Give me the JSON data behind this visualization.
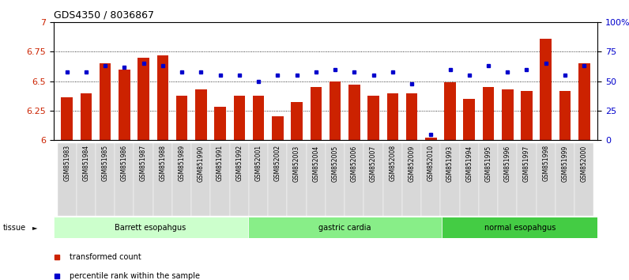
{
  "title": "GDS4350 / 8036867",
  "samples": [
    "GSM851983",
    "GSM851984",
    "GSM851985",
    "GSM851986",
    "GSM851987",
    "GSM851988",
    "GSM851989",
    "GSM851990",
    "GSM851991",
    "GSM851992",
    "GSM852001",
    "GSM852002",
    "GSM852003",
    "GSM852004",
    "GSM852005",
    "GSM852006",
    "GSM852007",
    "GSM852008",
    "GSM852009",
    "GSM852010",
    "GSM851993",
    "GSM851994",
    "GSM851995",
    "GSM851996",
    "GSM851997",
    "GSM851998",
    "GSM851999",
    "GSM852000"
  ],
  "red_values": [
    6.36,
    6.4,
    6.65,
    6.6,
    6.7,
    6.72,
    6.38,
    6.43,
    6.28,
    6.38,
    6.38,
    6.2,
    6.32,
    6.45,
    6.5,
    6.47,
    6.38,
    6.4,
    6.4,
    6.02,
    6.49,
    6.35,
    6.45,
    6.43,
    6.42,
    6.86,
    6.42,
    6.65
  ],
  "blue_values": [
    58,
    58,
    63,
    62,
    65,
    63,
    58,
    58,
    55,
    55,
    50,
    55,
    55,
    58,
    60,
    58,
    55,
    58,
    48,
    5,
    60,
    55,
    63,
    58,
    60,
    65,
    55,
    63
  ],
  "groups": [
    {
      "label": "Barrett esopahgus",
      "start": 0,
      "end": 9,
      "color": "#ccffcc"
    },
    {
      "label": "gastric cardia",
      "start": 10,
      "end": 19,
      "color": "#88ee88"
    },
    {
      "label": "normal esopahgus",
      "start": 20,
      "end": 27,
      "color": "#44cc44"
    }
  ],
  "ylim_left": [
    6.0,
    7.0
  ],
  "ylim_right": [
    0,
    100
  ],
  "yticks_left": [
    6.0,
    6.25,
    6.5,
    6.75,
    7.0
  ],
  "yticks_right": [
    0,
    25,
    50,
    75,
    100
  ],
  "ytick_labels_left": [
    "6",
    "6.25",
    "6.5",
    "6.75",
    "7"
  ],
  "ytick_labels_right": [
    "0",
    "25",
    "50",
    "75",
    "100%"
  ],
  "hlines": [
    6.25,
    6.5,
    6.75
  ],
  "bar_color": "#cc2200",
  "dot_color": "#0000cc",
  "tissue_label": "tissue",
  "legend_items": [
    {
      "color": "#cc2200",
      "label": "transformed count"
    },
    {
      "color": "#0000cc",
      "label": "percentile rank within the sample"
    }
  ],
  "group_colors": [
    "#ccffcc",
    "#88ee88",
    "#44cc44"
  ]
}
